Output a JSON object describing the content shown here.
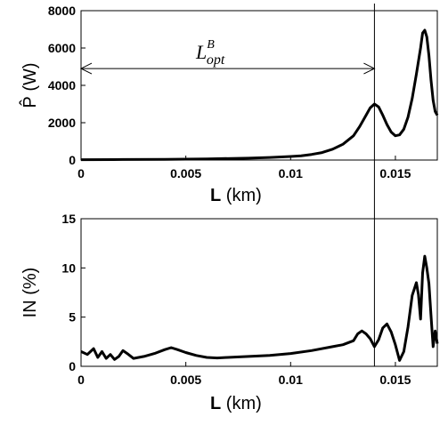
{
  "chart_data": [
    {
      "type": "line",
      "xlabel": "L",
      "xlabel_unit": "(km)",
      "ylabel": "P̂ (W)",
      "xlim": [
        0,
        0.017
      ],
      "ylim": [
        0,
        8000
      ],
      "xticks": [
        "0",
        "0.005",
        "0.01",
        "0.015"
      ],
      "xtick_values": [
        0,
        0.005,
        0.01,
        0.015
      ],
      "yticks": [
        "0",
        "2000",
        "4000",
        "6000",
        "8000"
      ],
      "ytick_values": [
        0,
        2000,
        4000,
        6000,
        8000
      ],
      "grid": false,
      "series": [
        {
          "x": [
            0,
            0.002,
            0.004,
            0.006,
            0.008,
            0.009,
            0.01,
            0.0105,
            0.011,
            0.0115,
            0.012,
            0.0125,
            0.013,
            0.0133,
            0.0136,
            0.0138,
            0.014,
            0.0142,
            0.0144,
            0.0146,
            0.0148,
            0.015,
            0.0152,
            0.0154,
            0.0156,
            0.0158,
            0.016,
            0.0162,
            0.0163,
            0.0164,
            0.0165,
            0.0166,
            0.0167,
            0.0168,
            0.0169,
            0.017
          ],
          "values": [
            20,
            30,
            40,
            60,
            100,
            140,
            190,
            230,
            300,
            400,
            580,
            850,
            1300,
            1800,
            2400,
            2800,
            3000,
            2850,
            2400,
            1900,
            1500,
            1300,
            1350,
            1650,
            2300,
            3300,
            4600,
            6000,
            6800,
            6950,
            6600,
            5600,
            4300,
            3200,
            2600,
            2400
          ]
        }
      ],
      "annotation": {
        "base": "L",
        "superscript": "B",
        "subscript": "opt",
        "x_range": [
          0,
          0.014
        ],
        "y": 4900
      },
      "vline_x": 0.014
    },
    {
      "type": "line",
      "xlabel": "L",
      "xlabel_unit": "(km)",
      "ylabel": "IN (%)",
      "xlim": [
        0,
        0.017
      ],
      "ylim": [
        0,
        15
      ],
      "xticks": [
        "0",
        "0.005",
        "0.01",
        "0.015"
      ],
      "xtick_values": [
        0,
        0.005,
        0.01,
        0.015
      ],
      "yticks": [
        "0",
        "5",
        "10",
        "15"
      ],
      "ytick_values": [
        0,
        5,
        10,
        15
      ],
      "grid": false,
      "series": [
        {
          "x": [
            0,
            0.0003,
            0.0006,
            0.0008,
            0.001,
            0.0012,
            0.0014,
            0.0016,
            0.0018,
            0.002,
            0.0022,
            0.0025,
            0.003,
            0.0035,
            0.004,
            0.0043,
            0.0046,
            0.005,
            0.0055,
            0.006,
            0.0065,
            0.007,
            0.008,
            0.009,
            0.01,
            0.011,
            0.012,
            0.0125,
            0.013,
            0.0132,
            0.0134,
            0.0136,
            0.0138,
            0.014,
            0.0142,
            0.0144,
            0.0146,
            0.0148,
            0.015,
            0.0152,
            0.0154,
            0.0156,
            0.0158,
            0.016,
            0.0161,
            0.0162,
            0.0163,
            0.0164,
            0.0165,
            0.0166,
            0.0167,
            0.0168,
            0.0169,
            0.017
          ],
          "values": [
            1.5,
            1.2,
            1.8,
            0.9,
            1.5,
            0.8,
            1.2,
            0.7,
            1.0,
            1.6,
            1.3,
            0.8,
            1.0,
            1.3,
            1.7,
            1.9,
            1.7,
            1.4,
            1.1,
            0.9,
            0.85,
            0.9,
            1.0,
            1.1,
            1.3,
            1.6,
            2.0,
            2.2,
            2.6,
            3.3,
            3.6,
            3.3,
            2.8,
            2.0,
            2.7,
            3.9,
            4.3,
            3.5,
            2.2,
            0.6,
            1.5,
            4.0,
            7.2,
            8.5,
            7.3,
            4.8,
            9.5,
            11.2,
            10.0,
            8.4,
            5.2,
            2.0,
            3.6,
            2.3
          ]
        }
      ],
      "vline_x": 0.014
    }
  ]
}
